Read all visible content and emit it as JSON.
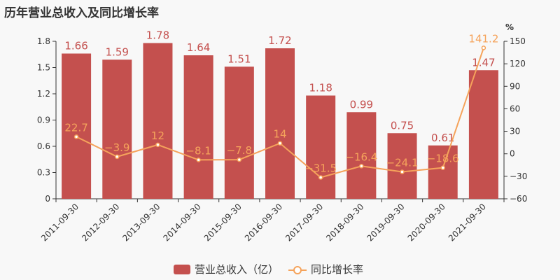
{
  "chart_data": {
    "type": "bar+line",
    "title": "历年营业总收入及同比增长率",
    "categories": [
      "2011-09-30",
      "2012-09-30",
      "2013-09-30",
      "2014-09-30",
      "2015-09-30",
      "2016-09-30",
      "2017-09-30",
      "2018-09-30",
      "2019-09-30",
      "2020-09-30",
      "2021-09-30"
    ],
    "series": [
      {
        "name": "营业总收入（亿）",
        "type": "bar",
        "axis": "left",
        "color": "#c4504e",
        "values": [
          1.66,
          1.59,
          1.78,
          1.64,
          1.51,
          1.72,
          1.18,
          0.99,
          0.75,
          0.61,
          1.47
        ]
      },
      {
        "name": "同比增长率",
        "type": "line",
        "axis": "right",
        "color": "#f5a35b",
        "values": [
          22.7,
          -3.9,
          12,
          -8.1,
          -7.8,
          14,
          -31.5,
          -16.4,
          -24.1,
          -18.6,
          141.2
        ]
      }
    ],
    "left_axis": {
      "range": [
        0,
        1.8
      ],
      "ticks": [
        "0",
        "0.3",
        "0.6",
        "0.9",
        "1.2",
        "1.5",
        "1.8"
      ]
    },
    "right_axis": {
      "label": "%",
      "range": [
        -60,
        150
      ],
      "ticks": [
        "−60",
        "−30",
        "0",
        "30",
        "60",
        "90",
        "120",
        "150"
      ]
    },
    "grid": false,
    "legend_position": "bottom"
  }
}
